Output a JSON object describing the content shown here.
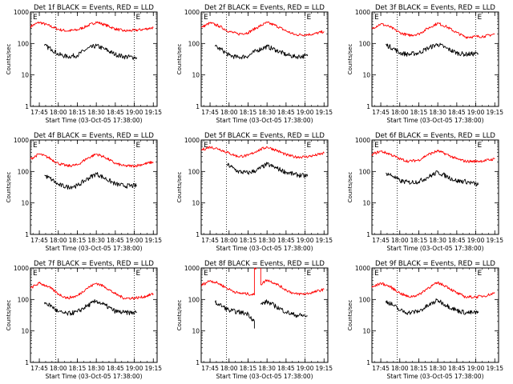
{
  "colors": {
    "events": "#000000",
    "lld": "#ff0000",
    "axes": "#000000",
    "background": "#ffffff"
  },
  "chart_data": [
    {
      "type": "line",
      "title": "Det 1f BLACK = Events, RED = LLD",
      "xlabel": "Start Time (03-Oct-05 17:38:00)",
      "ylabel": "Counts/sec",
      "x_ticks": [
        "17:45",
        "18:00",
        "18:15",
        "18:30",
        "18:45",
        "19:00",
        "19:15"
      ],
      "y_ticks": [
        "1",
        "10",
        "100",
        "1000"
      ],
      "ylim": [
        1,
        1000
      ],
      "y_scale": "log",
      "markers": [
        "E",
        "E"
      ],
      "dotted_lines": [
        "17:58",
        "19:00"
      ],
      "series": [
        {
          "name": "LLD",
          "color": "#ff0000",
          "x": [
            "17:38",
            "17:45",
            "17:52",
            "18:00",
            "18:07",
            "18:15",
            "18:22",
            "18:30",
            "18:37",
            "18:45",
            "18:52",
            "19:00",
            "19:07",
            "19:15"
          ],
          "values": [
            350,
            470,
            380,
            280,
            250,
            270,
            350,
            480,
            390,
            290,
            250,
            260,
            280,
            320
          ]
        },
        {
          "name": "Events",
          "color": "#000000",
          "x": [
            "17:49",
            "17:55",
            "18:00",
            "18:07",
            "18:15",
            "18:22",
            "18:30",
            "18:37",
            "18:45",
            "18:52",
            "19:02"
          ],
          "values": [
            85,
            65,
            45,
            38,
            42,
            65,
            85,
            65,
            45,
            38,
            36
          ]
        }
      ]
    },
    {
      "type": "line",
      "title": "Det 2f BLACK = Events, RED = LLD",
      "xlabel": "Start Time (03-Oct-05 17:38:00)",
      "ylabel": "Counts/sec",
      "x_ticks": [
        "17:45",
        "18:00",
        "18:15",
        "18:30",
        "18:45",
        "19:00",
        "19:15"
      ],
      "y_ticks": [
        "1",
        "10",
        "100",
        "1000"
      ],
      "ylim": [
        1,
        1000
      ],
      "y_scale": "log",
      "markers": [
        "E",
        "E"
      ],
      "dotted_lines": [
        "17:58",
        "19:00"
      ],
      "series": [
        {
          "name": "LLD",
          "color": "#ff0000",
          "x": [
            "17:38",
            "17:45",
            "17:52",
            "18:00",
            "18:07",
            "18:15",
            "18:22",
            "18:30",
            "18:37",
            "18:45",
            "18:52",
            "19:00",
            "19:07",
            "19:15"
          ],
          "values": [
            320,
            450,
            360,
            240,
            200,
            220,
            320,
            460,
            370,
            250,
            190,
            190,
            200,
            240
          ]
        },
        {
          "name": "Events",
          "color": "#000000",
          "x": [
            "17:49",
            "17:55",
            "18:00",
            "18:07",
            "18:15",
            "18:22",
            "18:30",
            "18:37",
            "18:45",
            "18:52",
            "19:02"
          ],
          "values": [
            80,
            60,
            42,
            36,
            40,
            60,
            80,
            62,
            44,
            38,
            40
          ]
        }
      ]
    },
    {
      "type": "line",
      "title": "Det 3f BLACK = Events, RED = LLD",
      "xlabel": "Start Time (03-Oct-05 17:38:00)",
      "ylabel": "Counts/sec",
      "x_ticks": [
        "17:45",
        "18:00",
        "18:15",
        "18:30",
        "18:45",
        "19:00",
        "19:15"
      ],
      "y_ticks": [
        "1",
        "10",
        "100",
        "1000"
      ],
      "ylim": [
        1,
        1000
      ],
      "y_scale": "log",
      "markers": [
        "E",
        "E"
      ],
      "dotted_lines": [
        "17:58",
        "19:00"
      ],
      "series": [
        {
          "name": "LLD",
          "color": "#ff0000",
          "x": [
            "17:38",
            "17:45",
            "17:52",
            "18:00",
            "18:07",
            "18:15",
            "18:22",
            "18:30",
            "18:37",
            "18:45",
            "18:52",
            "19:00",
            "19:07",
            "19:15"
          ],
          "values": [
            300,
            420,
            340,
            220,
            180,
            200,
            300,
            440,
            340,
            220,
            160,
            165,
            170,
            200
          ]
        },
        {
          "name": "Events",
          "color": "#000000",
          "x": [
            "17:49",
            "17:55",
            "18:00",
            "18:07",
            "18:15",
            "18:22",
            "18:30",
            "18:37",
            "18:45",
            "18:52",
            "19:02"
          ],
          "values": [
            90,
            70,
            50,
            45,
            50,
            70,
            95,
            70,
            50,
            45,
            48
          ]
        }
      ]
    },
    {
      "type": "line",
      "title": "Det 4f BLACK = Events, RED = LLD",
      "xlabel": "Start Time (03-Oct-05 17:38:00)",
      "ylabel": "Counts/sec",
      "x_ticks": [
        "17:45",
        "18:00",
        "18:15",
        "18:30",
        "18:45",
        "19:00",
        "19:15"
      ],
      "y_ticks": [
        "1",
        "10",
        "100",
        "1000"
      ],
      "ylim": [
        1,
        1000
      ],
      "y_scale": "log",
      "markers": [
        "E",
        "E"
      ],
      "dotted_lines": [
        "17:58",
        "19:00"
      ],
      "series": [
        {
          "name": "LLD",
          "color": "#ff0000",
          "x": [
            "17:38",
            "17:45",
            "17:52",
            "18:00",
            "18:07",
            "18:15",
            "18:22",
            "18:30",
            "18:37",
            "18:45",
            "18:52",
            "19:00",
            "19:07",
            "19:15"
          ],
          "values": [
            250,
            360,
            280,
            180,
            150,
            160,
            250,
            360,
            280,
            180,
            150,
            150,
            170,
            200
          ]
        },
        {
          "name": "Events",
          "color": "#000000",
          "x": [
            "17:49",
            "17:55",
            "18:00",
            "18:07",
            "18:15",
            "18:22",
            "18:30",
            "18:37",
            "18:45",
            "18:52",
            "19:02"
          ],
          "values": [
            75,
            55,
            38,
            32,
            35,
            55,
            85,
            60,
            40,
            35,
            35
          ]
        }
      ]
    },
    {
      "type": "line",
      "title": "Det 5f BLACK = Events, RED = LLD",
      "xlabel": "Start Time (03-Oct-05 17:38:00)",
      "ylabel": "Counts/sec",
      "x_ticks": [
        "17:45",
        "18:00",
        "18:15",
        "18:30",
        "18:45",
        "19:00",
        "19:15"
      ],
      "y_ticks": [
        "1",
        "10",
        "100",
        "1000"
      ],
      "ylim": [
        1,
        1000
      ],
      "y_scale": "log",
      "markers": [
        "E",
        "E"
      ],
      "dotted_lines": [
        "17:58",
        "19:00"
      ],
      "series": [
        {
          "name": "LLD",
          "color": "#ff0000",
          "x": [
            "17:38",
            "17:45",
            "17:52",
            "18:00",
            "18:07",
            "18:15",
            "18:22",
            "18:30",
            "18:37",
            "18:45",
            "18:52",
            "19:00",
            "19:07",
            "19:15"
          ],
          "values": [
            480,
            600,
            520,
            380,
            300,
            320,
            450,
            600,
            480,
            340,
            290,
            290,
            320,
            380
          ]
        },
        {
          "name": "Events",
          "color": "#000000",
          "x": [
            "17:58",
            "18:03",
            "18:07",
            "18:15",
            "18:22",
            "18:30",
            "18:37",
            "18:45",
            "18:52",
            "19:02"
          ],
          "values": [
            170,
            130,
            100,
            90,
            110,
            170,
            130,
            95,
            80,
            70
          ]
        }
      ]
    },
    {
      "type": "line",
      "title": "Det 6f BLACK = Events, RED = LLD",
      "xlabel": "Start Time (03-Oct-05 17:38:00)",
      "ylabel": "Counts/sec",
      "x_ticks": [
        "17:45",
        "18:00",
        "18:15",
        "18:30",
        "18:45",
        "19:00",
        "19:15"
      ],
      "y_ticks": [
        "1",
        "10",
        "100",
        "1000"
      ],
      "ylim": [
        1,
        1000
      ],
      "y_scale": "log",
      "markers": [
        "E",
        "E"
      ],
      "dotted_lines": [
        "17:58",
        "19:00"
      ],
      "series": [
        {
          "name": "LLD",
          "color": "#ff0000",
          "x": [
            "17:38",
            "17:45",
            "17:52",
            "18:00",
            "18:07",
            "18:15",
            "18:22",
            "18:30",
            "18:37",
            "18:45",
            "18:52",
            "19:00",
            "19:07",
            "19:15"
          ],
          "values": [
            350,
            440,
            360,
            250,
            210,
            230,
            340,
            450,
            350,
            250,
            210,
            210,
            220,
            250
          ]
        },
        {
          "name": "Events",
          "color": "#000000",
          "x": [
            "17:49",
            "17:55",
            "18:00",
            "18:07",
            "18:15",
            "18:22",
            "18:30",
            "18:37",
            "18:45",
            "18:52",
            "19:02"
          ],
          "values": [
            90,
            70,
            50,
            45,
            48,
            65,
            95,
            70,
            50,
            48,
            38
          ]
        }
      ]
    },
    {
      "type": "line",
      "title": "Det 7f BLACK = Events, RED = LLD",
      "xlabel": "Start Time (03-Oct-05 17:38:00)",
      "ylabel": "Counts/sec",
      "x_ticks": [
        "17:45",
        "18:00",
        "18:15",
        "18:30",
        "18:45",
        "19:00",
        "19:15"
      ],
      "y_ticks": [
        "1",
        "10",
        "100",
        "1000"
      ],
      "ylim": [
        1,
        1000
      ],
      "y_scale": "log",
      "markers": [
        "E",
        "E"
      ],
      "dotted_lines": [
        "17:58",
        "19:00"
      ],
      "series": [
        {
          "name": "LLD",
          "color": "#ff0000",
          "x": [
            "17:38",
            "17:45",
            "17:52",
            "18:00",
            "18:07",
            "18:15",
            "18:22",
            "18:30",
            "18:37",
            "18:45",
            "18:52",
            "19:00",
            "19:07",
            "19:15"
          ],
          "values": [
            230,
            330,
            260,
            150,
            110,
            130,
            220,
            330,
            250,
            150,
            110,
            110,
            120,
            150
          ]
        },
        {
          "name": "Events",
          "color": "#000000",
          "x": [
            "17:49",
            "17:55",
            "18:00",
            "18:07",
            "18:15",
            "18:22",
            "18:30",
            "18:37",
            "18:45",
            "18:52",
            "19:02"
          ],
          "values": [
            80,
            60,
            40,
            35,
            40,
            60,
            90,
            65,
            42,
            38,
            38
          ]
        }
      ]
    },
    {
      "type": "line",
      "title": "Det 8f BLACK = Events, RED = LLD",
      "xlabel": "Start Time (03-Oct-05 17:38:00)",
      "ylabel": "Counts/sec",
      "x_ticks": [
        "17:45",
        "18:00",
        "18:15",
        "18:30",
        "18:45",
        "19:00",
        "19:15"
      ],
      "y_ticks": [
        "1",
        "10",
        "100",
        "1000"
      ],
      "ylim": [
        1,
        1000
      ],
      "y_scale": "log",
      "markers": [
        "E",
        "E"
      ],
      "dotted_lines": [
        "17:58",
        "19:00"
      ],
      "series": [
        {
          "name": "LLD",
          "color": "#ff0000",
          "x": [
            "17:38",
            "17:45",
            "17:52",
            "18:00",
            "18:07",
            "18:15",
            "18:20",
            "18:20",
            "18:22",
            "18:22",
            "18:25",
            "18:25",
            "18:30",
            "18:37",
            "18:45",
            "18:52",
            "19:00",
            "19:07",
            "19:15"
          ],
          "values": [
            280,
            400,
            320,
            210,
            160,
            150,
            140,
            1000,
            1000,
            null,
            1000,
            300,
            420,
            320,
            200,
            150,
            150,
            170,
            210
          ]
        },
        {
          "name": "Events",
          "color": "#000000",
          "x": [
            "17:49",
            "17:55",
            "18:00",
            "18:07",
            "18:15",
            "18:20",
            "18:20",
            "18:22",
            "18:25",
            "18:30",
            "18:37",
            "18:45",
            "18:52",
            "19:02"
          ],
          "values": [
            80,
            60,
            45,
            40,
            35,
            20,
            12,
            null,
            70,
            85,
            60,
            40,
            32,
            30
          ]
        }
      ]
    },
    {
      "type": "line",
      "title": "Det 9f BLACK = Events, RED = LLD",
      "xlabel": "Start Time (03-Oct-05 17:38:00)",
      "ylabel": "Counts/sec",
      "x_ticks": [
        "17:45",
        "18:00",
        "18:15",
        "18:30",
        "18:45",
        "19:00",
        "19:15"
      ],
      "y_ticks": [
        "1",
        "10",
        "100",
        "1000"
      ],
      "ylim": [
        1,
        1000
      ],
      "y_scale": "log",
      "markers": [
        "E",
        "E"
      ],
      "dotted_lines": [
        "17:58",
        "19:00"
      ],
      "series": [
        {
          "name": "LLD",
          "color": "#ff0000",
          "x": [
            "17:38",
            "17:45",
            "17:52",
            "18:00",
            "18:07",
            "18:15",
            "18:22",
            "18:30",
            "18:37",
            "18:45",
            "18:52",
            "19:00",
            "19:07",
            "19:15"
          ],
          "values": [
            240,
            330,
            260,
            160,
            120,
            140,
            230,
            340,
            260,
            160,
            120,
            120,
            130,
            160
          ]
        },
        {
          "name": "Events",
          "color": "#000000",
          "x": [
            "17:49",
            "17:55",
            "18:00",
            "18:07",
            "18:15",
            "18:22",
            "18:30",
            "18:37",
            "18:45",
            "18:52",
            "19:02"
          ],
          "values": [
            90,
            65,
            45,
            38,
            42,
            62,
            95,
            65,
            45,
            38,
            38
          ]
        }
      ]
    }
  ]
}
